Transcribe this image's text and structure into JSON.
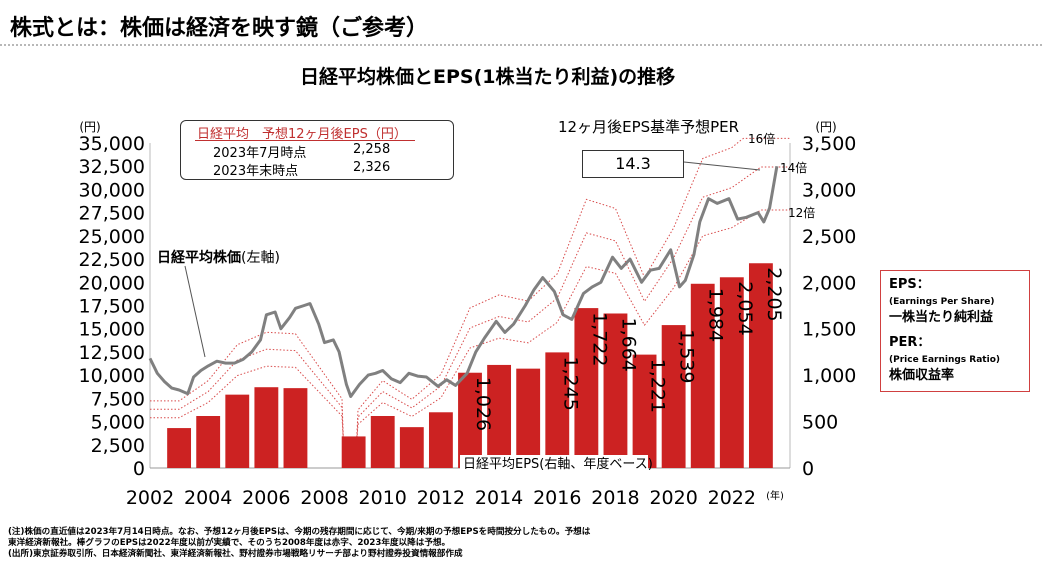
{
  "page_title": "株式とは：株価は経済を映す鏡（ご参考）",
  "chart_title": "日経平均株価とEPS(1株当たり利益)の推移",
  "eps_box": {
    "header": "日経平均　予想12ヶ月後EPS（円）",
    "row1_label": "2023年7月時点",
    "row1_value": "2,258",
    "row2_label": "2023年末時点",
    "row2_value": "2,326"
  },
  "per_header": "12ヶ月後EPS基準予想PER",
  "per_value": "14.3",
  "legend": {
    "eps_term": "EPS：",
    "eps_en": "(Earnings Per Share)",
    "eps_jp": "一株当たり純利益",
    "per_term": "PER：",
    "per_en": "(Price Earnings Ratio)",
    "per_jp": "株価収益率"
  },
  "footnotes": [
    "(注)株価の直近値は2023年7月14日時点。なお、予想12ヶ月後EPSは、今期の残存期間に応じて、今期/来期の予想EPSを時間按分したもの。予想は",
    "東洋経済新報社。棒グラフのEPSは2022年度以前が実績で、そのうち2008年度は赤字、2023年度以降は予想。",
    "(出所)東京証券取引所、日本経済新聞社、東洋経済新報社、野村證券市場戦略リサーチ部より野村證券投資情報部作成"
  ],
  "colors": {
    "bar": "#cc2222",
    "price_line": "#808080",
    "band": "#d84a4a",
    "axis_text": "#000000"
  },
  "chart_data": {
    "type": "bar+line",
    "left_axis": {
      "unit": "(円)",
      "range": [
        0,
        35000
      ],
      "ticks": [
        0,
        2500,
        5000,
        7500,
        10000,
        12500,
        15000,
        17500,
        20000,
        22500,
        25000,
        27500,
        30000,
        32500,
        35000
      ],
      "tick_labels": [
        "0",
        "2,500",
        "5,000",
        "7,500",
        "10,000",
        "12,500",
        "15,000",
        "17,500",
        "20,000",
        "22,500",
        "25,000",
        "27,500",
        "30,000",
        "32,500",
        "35,000"
      ]
    },
    "right_axis": {
      "unit": "(円)",
      "range": [
        0,
        3500
      ],
      "ticks": [
        0,
        500,
        1000,
        1500,
        2000,
        2500,
        3000,
        3500
      ],
      "tick_labels": [
        "0",
        "500",
        "1,000",
        "1,500",
        "2,000",
        "2,500",
        "3,000",
        "3,500"
      ]
    },
    "x_axis": {
      "unit": "(年)",
      "range": [
        2002,
        2024
      ],
      "ticks": [
        2002,
        2004,
        2006,
        2008,
        2010,
        2012,
        2014,
        2016,
        2018,
        2020,
        2022
      ],
      "tick_labels": [
        "2002",
        "2004",
        "2006",
        "2008",
        "2010",
        "2012",
        "2014",
        "2016",
        "2018",
        "2020",
        "2022"
      ]
    },
    "series": [
      {
        "name": "日経平均株価(左軸)",
        "label_main": "日経平均株価",
        "label_suffix": "(左軸)",
        "type": "line",
        "x": [
          2002.0,
          2002.25,
          2002.5,
          2002.75,
          2003.0,
          2003.3,
          2003.5,
          2003.75,
          2004.0,
          2004.3,
          2004.6,
          2004.9,
          2005.2,
          2005.5,
          2005.8,
          2006.0,
          2006.3,
          2006.5,
          2006.8,
          2007.0,
          2007.3,
          2007.5,
          2007.8,
          2008.0,
          2008.3,
          2008.5,
          2008.75,
          2008.9,
          2009.2,
          2009.5,
          2009.75,
          2010.0,
          2010.3,
          2010.6,
          2010.9,
          2011.2,
          2011.5,
          2011.9,
          2012.2,
          2012.5,
          2012.9,
          2013.2,
          2013.5,
          2013.9,
          2014.2,
          2014.5,
          2014.9,
          2015.2,
          2015.5,
          2015.9,
          2016.2,
          2016.5,
          2016.9,
          2017.2,
          2017.5,
          2017.9,
          2018.2,
          2018.5,
          2018.9,
          2019.2,
          2019.5,
          2019.9,
          2020.2,
          2020.4,
          2020.7,
          2020.9,
          2021.2,
          2021.5,
          2021.9,
          2022.2,
          2022.5,
          2022.9,
          2023.1,
          2023.3,
          2023.55
        ],
        "values": [
          11800,
          10200,
          9300,
          8600,
          8400,
          8000,
          9800,
          10500,
          11000,
          11500,
          11300,
          11300,
          11700,
          12500,
          13800,
          16500,
          16800,
          15000,
          16200,
          17200,
          17500,
          17700,
          15500,
          13500,
          13800,
          12500,
          9000,
          7700,
          9000,
          10000,
          10200,
          10500,
          9600,
          9200,
          10200,
          9900,
          9800,
          8800,
          9500,
          8900,
          10200,
          12500,
          14000,
          15800,
          14600,
          15500,
          17500,
          19200,
          20500,
          19000,
          16500,
          16000,
          18800,
          19500,
          20000,
          22700,
          21500,
          22500,
          20000,
          21300,
          21500,
          23500,
          19500,
          20200,
          23000,
          26500,
          29000,
          28500,
          29000,
          26800,
          27000,
          27500,
          26500,
          28000,
          32500
        ]
      },
      {
        "name": "日経平均EPS(右軸、年度ベース)",
        "type": "bar",
        "x": [
          2003,
          2004,
          2005,
          2006,
          2007,
          2008,
          2009,
          2010,
          2011,
          2012,
          2013,
          2014,
          2015,
          2016,
          2017,
          2018,
          2019,
          2020,
          2021,
          2022,
          2023
        ],
        "values": [
          430,
          560,
          790,
          870,
          860,
          null,
          340,
          560,
          440,
          600,
          1026,
          1110,
          1070,
          1245,
          1722,
          1664,
          1221,
          1539,
          1984,
          2054,
          2205
        ],
        "labels": [
          "",
          "",
          "",
          "",
          "",
          "",
          "",
          "",
          "",
          "",
          "1,026",
          "",
          "",
          "1,245",
          "1,722",
          "1,664",
          "1,221",
          "1,539",
          "1,984",
          "2,054",
          "2,205"
        ]
      }
    ],
    "per_bands": [
      {
        "label": "16倍",
        "multiple": 16
      },
      {
        "label": "14倍",
        "multiple": 14
      },
      {
        "label": "12倍",
        "multiple": 12
      }
    ]
  }
}
